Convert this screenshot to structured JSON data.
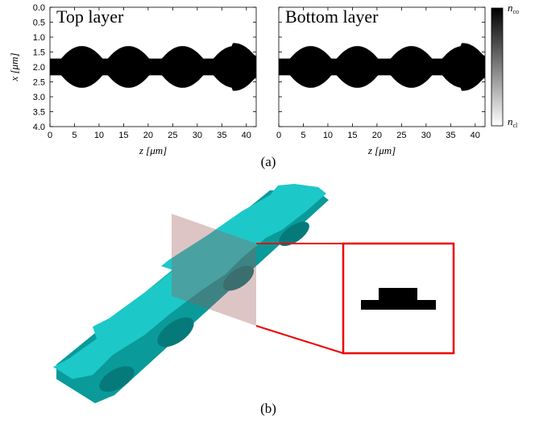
{
  "panel_a": {
    "xlim": [
      0,
      42
    ],
    "ylim": [
      0,
      4
    ],
    "xticks": [
      0,
      5,
      10,
      15,
      20,
      25,
      30,
      35,
      40
    ],
    "yticks": [
      {
        "value": 0,
        "label": "0.0"
      },
      0.5,
      {
        "value": 1,
        "label": "1.0"
      },
      1.5,
      {
        "value": 2,
        "label": "2.0"
      },
      2.5,
      {
        "value": 3,
        "label": "3.0"
      },
      3.5,
      {
        "value": 4,
        "label": "4.0"
      }
    ],
    "ylabel": "x [μm]",
    "plots": [
      {
        "title": "Top layer",
        "xlabel": "z [μm]"
      },
      {
        "title": "Bottom layer",
        "xlabel": "z [μm]"
      }
    ],
    "colorbar": {
      "max_label": {
        "symbol": "n",
        "subscript": "co"
      },
      "min_label": {
        "symbol": "n",
        "subscript": "cl"
      }
    },
    "caption": "(a)"
  },
  "panel_b": {
    "caption": "(b)"
  }
}
